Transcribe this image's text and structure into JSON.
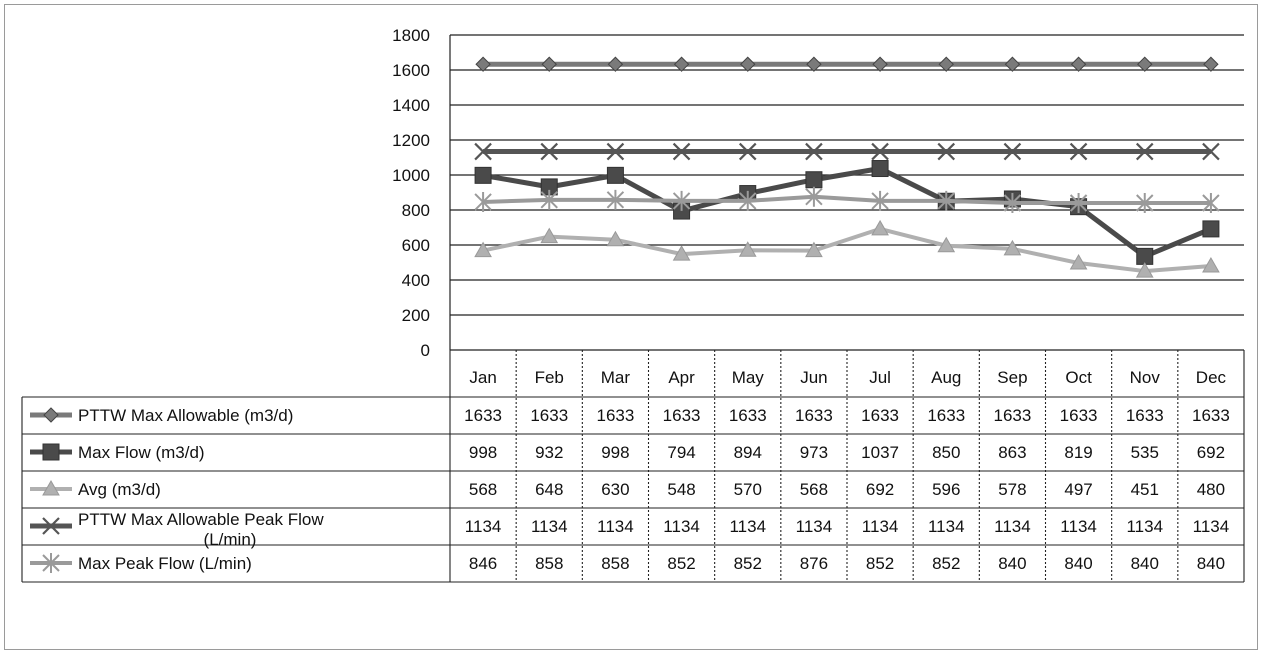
{
  "chart_data": {
    "type": "line",
    "title": "",
    "xlabel": "",
    "ylabel": "",
    "ylim": [
      0,
      1800
    ],
    "yticks": [
      0,
      200,
      400,
      600,
      800,
      1000,
      1200,
      1400,
      1600,
      1800
    ],
    "grid": true,
    "legend": "data-table",
    "categories": [
      "Jan",
      "Feb",
      "Mar",
      "Apr",
      "May",
      "Jun",
      "Jul",
      "Aug",
      "Sep",
      "Oct",
      "Nov",
      "Dec"
    ],
    "series": [
      {
        "name": "PTTW Max Allowable (m3/d)",
        "marker": "diamond",
        "color": "#7a7a7a",
        "values": [
          1633,
          1633,
          1633,
          1633,
          1633,
          1633,
          1633,
          1633,
          1633,
          1633,
          1633,
          1633
        ]
      },
      {
        "name": "Max Flow (m3/d)",
        "marker": "square",
        "color": "#4a4a4a",
        "values": [
          998,
          932,
          998,
          794,
          894,
          973,
          1037,
          850,
          863,
          819,
          535,
          692
        ]
      },
      {
        "name": "Avg (m3/d)",
        "marker": "triangle",
        "color": "#b0b0b0",
        "values": [
          568,
          648,
          630,
          548,
          570,
          568,
          692,
          596,
          578,
          497,
          451,
          480
        ]
      },
      {
        "name": "PTTW Max Allowable Peak Flow (L/min)",
        "marker": "x",
        "color": "#555555",
        "values": [
          1134,
          1134,
          1134,
          1134,
          1134,
          1134,
          1134,
          1134,
          1134,
          1134,
          1134,
          1134
        ]
      },
      {
        "name": "Max Peak Flow (L/min)",
        "marker": "star",
        "color": "#9a9a9a",
        "values": [
          846,
          858,
          858,
          852,
          852,
          876,
          852,
          852,
          840,
          840,
          840,
          840
        ]
      }
    ]
  }
}
